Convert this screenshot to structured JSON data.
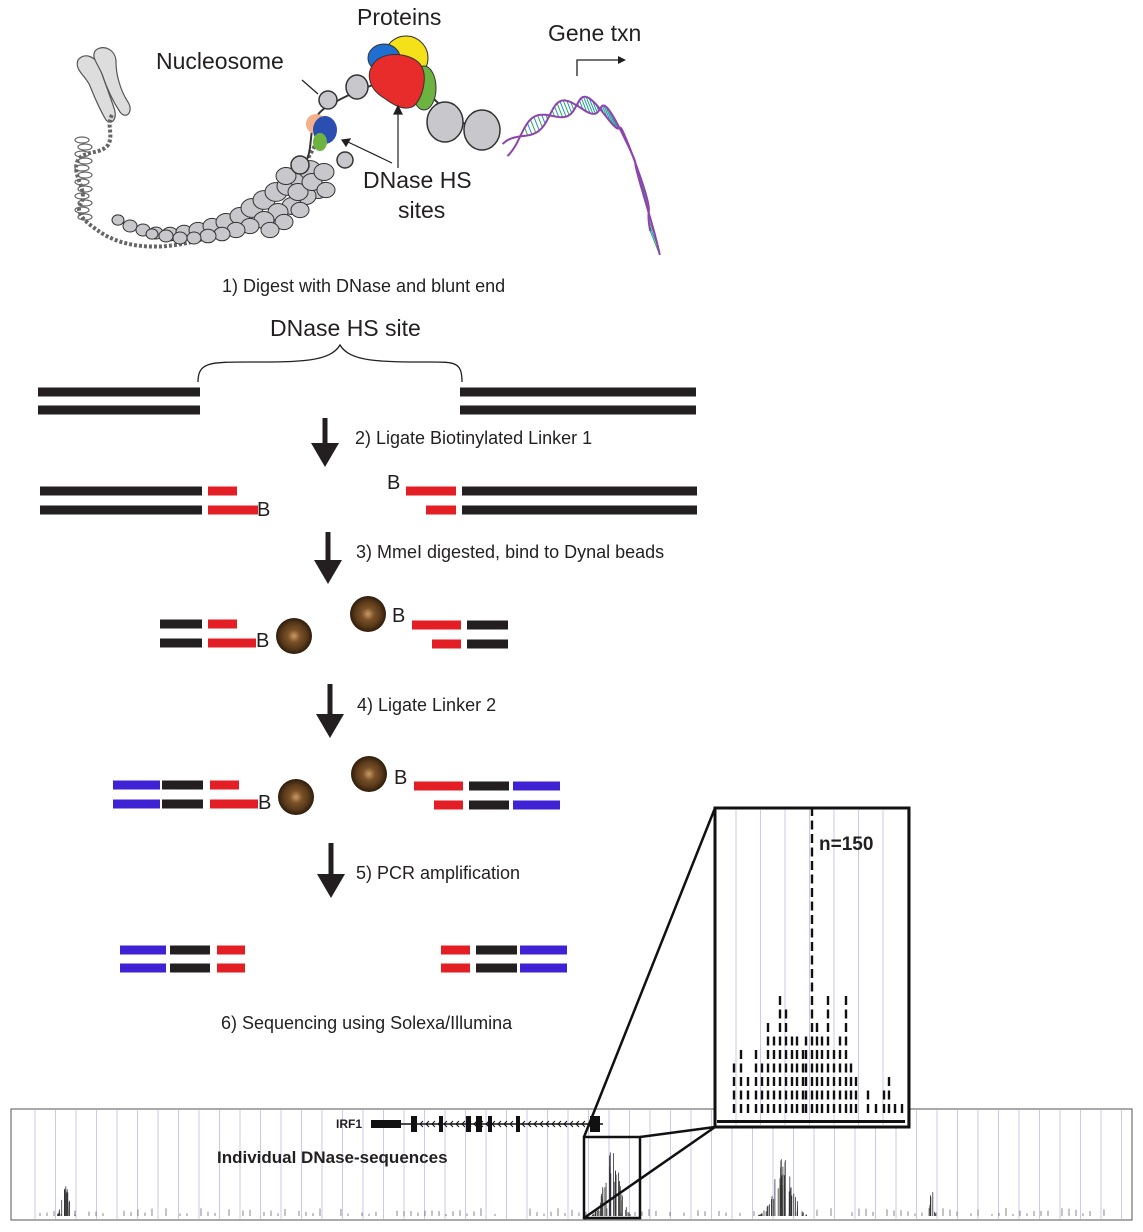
{
  "labels": {
    "proteins": "Proteins",
    "gene_txn": "Gene txn",
    "nucleosome": "Nucleosome",
    "dnase_hs_sites_line1": "DNase HS",
    "dnase_hs_sites_line2": "sites",
    "dnase_hs_site": "DNase HS site",
    "biotin": "B",
    "irf1": "IRF1",
    "individual_sequences": "Individual DNase-sequences",
    "count": "n=150"
  },
  "steps": [
    "1) Digest with DNase and blunt end",
    "2) Ligate Biotinylated Linker 1",
    "3) MmeI digested, bind to Dynal beads",
    "4) Ligate Linker 2",
    "5) PCR amplification",
    "6) Sequencing using Solexa/Illumina"
  ],
  "colors": {
    "dna": "#231f20",
    "linker1": "#e31e24",
    "linker2": "#3f22d4",
    "bead": "#5a3a1a",
    "helix": "#8e44ad",
    "nucleosome": "#c8c8cc",
    "protein_red": "#e82c2c",
    "protein_yellow": "#f5e11a",
    "protein_green": "#6db33f",
    "protein_blue": "#1f6fd1",
    "grid": "#c9c9ee"
  }
}
